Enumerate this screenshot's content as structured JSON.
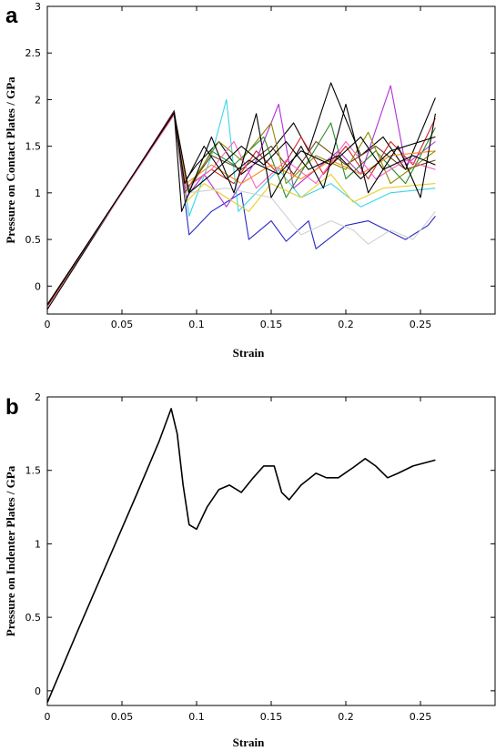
{
  "chart_data": [
    {
      "type": "line",
      "panel_label": "a",
      "xlabel": "Strain",
      "ylabel": "Pressure on Contact Plates / GPa",
      "xlim": [
        0,
        0.3
      ],
      "ylim": [
        -0.3,
        3
      ],
      "xticks": [
        "0",
        "0.05",
        "0.1",
        "0.15",
        "0.2",
        "0.25"
      ],
      "yticks": [
        "0",
        "0.5",
        "1",
        "1.5",
        "2",
        "2.5",
        "3"
      ],
      "grid": false,
      "legend": "none",
      "series": [
        {
          "color": "#000000",
          "points": [
            [
              0,
              -0.25
            ],
            [
              0.085,
              1.88
            ],
            [
              0.091,
              1.1
            ],
            [
              0.1,
              1.3
            ],
            [
              0.115,
              1.55
            ],
            [
              0.13,
              1.2
            ],
            [
              0.15,
              1.45
            ],
            [
              0.165,
              1.75
            ],
            [
              0.175,
              1.45
            ],
            [
              0.19,
              2.18
            ],
            [
              0.21,
              1.4
            ],
            [
              0.225,
              1.6
            ],
            [
              0.24,
              1.25
            ],
            [
              0.26,
              2.02
            ]
          ]
        },
        {
          "color": "#d42020",
          "points": [
            [
              0,
              -0.22
            ],
            [
              0.085,
              1.87
            ],
            [
              0.092,
              1.05
            ],
            [
              0.11,
              1.25
            ],
            [
              0.125,
              1.1
            ],
            [
              0.14,
              1.45
            ],
            [
              0.155,
              1.2
            ],
            [
              0.17,
              1.6
            ],
            [
              0.185,
              1.2
            ],
            [
              0.2,
              1.5
            ],
            [
              0.215,
              1.15
            ],
            [
              0.23,
              1.55
            ],
            [
              0.245,
              1.3
            ],
            [
              0.26,
              1.8
            ]
          ]
        },
        {
          "color": "#2626c8",
          "points": [
            [
              0,
              -0.2
            ],
            [
              0.085,
              1.86
            ],
            [
              0.095,
              0.55
            ],
            [
              0.11,
              0.8
            ],
            [
              0.13,
              1.0
            ],
            [
              0.135,
              0.5
            ],
            [
              0.15,
              0.7
            ],
            [
              0.16,
              0.48
            ],
            [
              0.175,
              0.7
            ],
            [
              0.18,
              0.4
            ],
            [
              0.2,
              0.65
            ],
            [
              0.215,
              0.7
            ],
            [
              0.24,
              0.5
            ],
            [
              0.255,
              0.65
            ],
            [
              0.26,
              0.75
            ]
          ]
        },
        {
          "color": "#3ad6e6",
          "points": [
            [
              0,
              -0.2
            ],
            [
              0.085,
              1.85
            ],
            [
              0.095,
              0.75
            ],
            [
              0.11,
              1.4
            ],
            [
              0.12,
              2.0
            ],
            [
              0.128,
              0.8
            ],
            [
              0.14,
              1.0
            ],
            [
              0.155,
              1.25
            ],
            [
              0.17,
              0.95
            ],
            [
              0.19,
              1.1
            ],
            [
              0.21,
              0.85
            ],
            [
              0.23,
              1.0
            ],
            [
              0.26,
              1.05
            ]
          ]
        },
        {
          "color": "#b030d8",
          "points": [
            [
              0,
              -0.2
            ],
            [
              0.085,
              1.86
            ],
            [
              0.093,
              0.95
            ],
            [
              0.105,
              1.2
            ],
            [
              0.12,
              0.85
            ],
            [
              0.14,
              1.35
            ],
            [
              0.155,
              1.95
            ],
            [
              0.165,
              1.05
            ],
            [
              0.18,
              1.25
            ],
            [
              0.195,
              1.45
            ],
            [
              0.21,
              1.2
            ],
            [
              0.23,
              2.15
            ],
            [
              0.24,
              1.3
            ],
            [
              0.26,
              1.55
            ]
          ]
        },
        {
          "color": "#2a8a2a",
          "points": [
            [
              0,
              -0.2
            ],
            [
              0.085,
              1.85
            ],
            [
              0.094,
              1.0
            ],
            [
              0.11,
              1.45
            ],
            [
              0.125,
              1.3
            ],
            [
              0.145,
              1.6
            ],
            [
              0.16,
              0.95
            ],
            [
              0.175,
              1.35
            ],
            [
              0.19,
              1.75
            ],
            [
              0.2,
              1.15
            ],
            [
              0.22,
              1.45
            ],
            [
              0.24,
              1.1
            ],
            [
              0.26,
              1.7
            ]
          ]
        },
        {
          "color": "#e6d020",
          "points": [
            [
              0,
              -0.2
            ],
            [
              0.085,
              1.85
            ],
            [
              0.093,
              0.9
            ],
            [
              0.105,
              1.1
            ],
            [
              0.12,
              0.95
            ],
            [
              0.135,
              0.8
            ],
            [
              0.15,
              1.1
            ],
            [
              0.17,
              0.95
            ],
            [
              0.19,
              1.2
            ],
            [
              0.205,
              0.9
            ],
            [
              0.225,
              1.05
            ],
            [
              0.26,
              1.1
            ]
          ]
        },
        {
          "color": "#d0d0d0",
          "points": [
            [
              0,
              -0.2
            ],
            [
              0.085,
              1.84
            ],
            [
              0.094,
              1.0
            ],
            [
              0.12,
              1.05
            ],
            [
              0.15,
              0.95
            ],
            [
              0.17,
              0.55
            ],
            [
              0.19,
              0.7
            ],
            [
              0.205,
              0.6
            ],
            [
              0.215,
              0.45
            ],
            [
              0.23,
              0.6
            ],
            [
              0.245,
              0.5
            ],
            [
              0.26,
              0.8
            ]
          ]
        },
        {
          "color": "#ff8c1a",
          "points": [
            [
              0,
              -0.2
            ],
            [
              0.085,
              1.84
            ],
            [
              0.093,
              1.1
            ],
            [
              0.11,
              1.3
            ],
            [
              0.13,
              1.1
            ],
            [
              0.15,
              1.3
            ],
            [
              0.17,
              1.15
            ],
            [
              0.19,
              1.35
            ],
            [
              0.21,
              1.2
            ],
            [
              0.23,
              1.4
            ],
            [
              0.26,
              1.45
            ]
          ]
        },
        {
          "color": "#6a3e18",
          "points": [
            [
              0,
              -0.2
            ],
            [
              0.085,
              1.84
            ],
            [
              0.092,
              1.0
            ],
            [
              0.11,
              1.4
            ],
            [
              0.13,
              1.25
            ],
            [
              0.15,
              1.5
            ],
            [
              0.165,
              1.2
            ],
            [
              0.18,
              1.55
            ],
            [
              0.2,
              1.3
            ],
            [
              0.22,
              1.5
            ],
            [
              0.24,
              1.25
            ],
            [
              0.26,
              1.35
            ]
          ]
        },
        {
          "color": "#8a8a00",
          "points": [
            [
              0,
              -0.2
            ],
            [
              0.085,
              1.84
            ],
            [
              0.094,
              1.05
            ],
            [
              0.115,
              1.55
            ],
            [
              0.13,
              1.35
            ],
            [
              0.15,
              1.75
            ],
            [
              0.16,
              1.1
            ],
            [
              0.18,
              1.4
            ],
            [
              0.2,
              1.25
            ],
            [
              0.215,
              1.65
            ],
            [
              0.23,
              1.1
            ],
            [
              0.26,
              1.45
            ]
          ]
        },
        {
          "color": "#ff60c0",
          "points": [
            [
              0,
              -0.2
            ],
            [
              0.085,
              1.84
            ],
            [
              0.093,
              1.05
            ],
            [
              0.11,
              1.25
            ],
            [
              0.125,
              1.55
            ],
            [
              0.14,
              1.05
            ],
            [
              0.16,
              1.35
            ],
            [
              0.18,
              1.1
            ],
            [
              0.2,
              1.55
            ],
            [
              0.22,
              1.15
            ],
            [
              0.24,
              1.35
            ],
            [
              0.26,
              1.25
            ]
          ]
        },
        {
          "color": "#000000",
          "points": [
            [
              0,
              -0.2
            ],
            [
              0.085,
              1.86
            ],
            [
              0.09,
              0.8
            ],
            [
              0.11,
              1.6
            ],
            [
              0.125,
              1.0
            ],
            [
              0.14,
              1.85
            ],
            [
              0.15,
              0.95
            ],
            [
              0.17,
              1.5
            ],
            [
              0.185,
              1.05
            ],
            [
              0.2,
              1.95
            ],
            [
              0.215,
              1.0
            ],
            [
              0.235,
              1.5
            ],
            [
              0.25,
              0.95
            ],
            [
              0.26,
              1.85
            ]
          ]
        },
        {
          "color": "#000000",
          "points": [
            [
              0,
              -0.2
            ],
            [
              0.085,
              1.86
            ],
            [
              0.092,
              1.1
            ],
            [
              0.105,
              1.5
            ],
            [
              0.12,
              1.15
            ],
            [
              0.135,
              1.35
            ],
            [
              0.155,
              1.2
            ],
            [
              0.17,
              1.45
            ],
            [
              0.19,
              1.3
            ],
            [
              0.21,
              1.6
            ],
            [
              0.225,
              1.25
            ],
            [
              0.245,
              1.4
            ],
            [
              0.26,
              1.3
            ]
          ]
        },
        {
          "color": "#000000",
          "points": [
            [
              0,
              -0.2
            ],
            [
              0.085,
              1.86
            ],
            [
              0.095,
              1.0
            ],
            [
              0.11,
              1.2
            ],
            [
              0.13,
              1.5
            ],
            [
              0.145,
              1.3
            ],
            [
              0.16,
              1.55
            ],
            [
              0.175,
              1.25
            ],
            [
              0.195,
              1.4
            ],
            [
              0.21,
              1.15
            ],
            [
              0.23,
              1.45
            ],
            [
              0.26,
              1.6
            ]
          ]
        }
      ]
    },
    {
      "type": "line",
      "panel_label": "b",
      "xlabel": "Strain",
      "ylabel": "Pressure on Indenter Plates / GPa",
      "xlim": [
        0,
        0.3
      ],
      "ylim": [
        -0.1,
        2
      ],
      "xticks": [
        "0",
        "0.05",
        "0.1",
        "0.15",
        "0.2",
        "0.25"
      ],
      "yticks": [
        "0",
        "0.5",
        "1",
        "1.5",
        "2"
      ],
      "grid": false,
      "legend": "none",
      "series": [
        {
          "color": "#000000",
          "points": [
            [
              0,
              -0.08
            ],
            [
              0.02,
              0.4
            ],
            [
              0.04,
              0.87
            ],
            [
              0.06,
              1.34
            ],
            [
              0.075,
              1.7
            ],
            [
              0.083,
              1.92
            ],
            [
              0.087,
              1.75
            ],
            [
              0.091,
              1.4
            ],
            [
              0.095,
              1.13
            ],
            [
              0.1,
              1.1
            ],
            [
              0.107,
              1.25
            ],
            [
              0.115,
              1.37
            ],
            [
              0.122,
              1.4
            ],
            [
              0.13,
              1.35
            ],
            [
              0.138,
              1.45
            ],
            [
              0.145,
              1.53
            ],
            [
              0.152,
              1.53
            ],
            [
              0.157,
              1.35
            ],
            [
              0.162,
              1.3
            ],
            [
              0.17,
              1.4
            ],
            [
              0.18,
              1.48
            ],
            [
              0.187,
              1.45
            ],
            [
              0.195,
              1.45
            ],
            [
              0.205,
              1.52
            ],
            [
              0.213,
              1.58
            ],
            [
              0.22,
              1.53
            ],
            [
              0.228,
              1.45
            ],
            [
              0.235,
              1.48
            ],
            [
              0.245,
              1.53
            ],
            [
              0.26,
              1.57
            ]
          ]
        }
      ]
    }
  ]
}
